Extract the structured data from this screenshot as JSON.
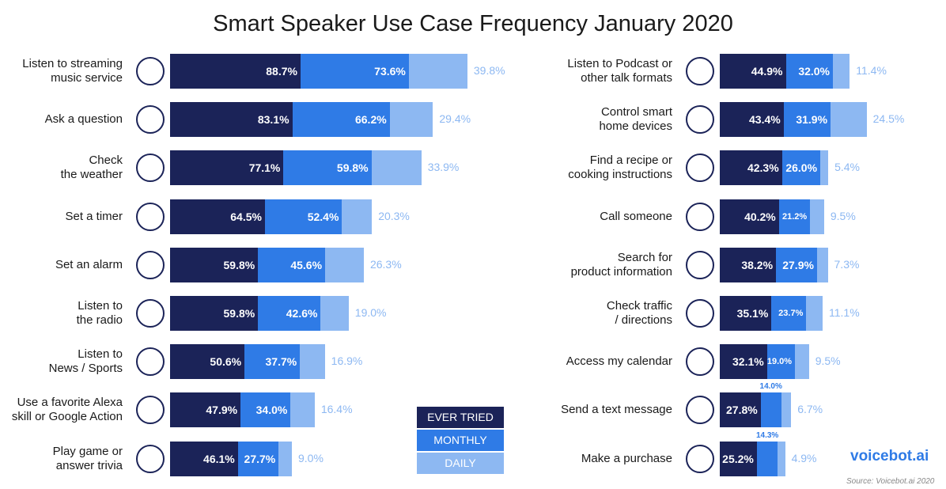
{
  "chart_data": {
    "type": "stacked_bar",
    "title": "Smart Speaker Use Case Frequency January 2020",
    "categories": [
      "Listen to streaming\nmusic service",
      "Ask a question",
      "Check\nthe weather",
      "Set a timer",
      "Set an alarm",
      "Listen to\nthe radio",
      "Listen to\nNews / Sports",
      "Use a favorite Alexa\nskill or Google Action",
      "Play game or\nanswer trivia",
      "Listen to Podcast or\nother talk formats",
      "Control smart\nhome devices",
      "Find a recipe or\ncooking instructions",
      "Call someone",
      "Search for\nproduct information",
      "Check traffic\n/ directions",
      "Access my calendar",
      "Send a text message",
      "Make a purchase"
    ],
    "series": [
      {
        "name": "EVER TRIED",
        "color": "#1b2358",
        "values": [
          88.7,
          83.1,
          77.1,
          64.5,
          59.8,
          59.8,
          50.6,
          47.9,
          46.1,
          44.9,
          43.4,
          42.3,
          40.2,
          38.2,
          35.1,
          32.1,
          27.8,
          25.2
        ],
        "value_labels": [
          "88.7%",
          "83.1%",
          "77.1%",
          "64.5%",
          "59.8%",
          "59.8%",
          "50.6%",
          "47.9%",
          "46.1%",
          "44.9%",
          "43.4%",
          "42.3%",
          "40.2%",
          "38.2%",
          "35.1%",
          "32.1%",
          "27.8%",
          "25.2%"
        ]
      },
      {
        "name": "MONTHLY",
        "color": "#2f7be6",
        "values": [
          73.6,
          66.2,
          59.8,
          52.4,
          45.6,
          42.6,
          37.7,
          34.0,
          27.7,
          32.0,
          31.9,
          26.0,
          21.2,
          27.9,
          23.7,
          19.0,
          14.0,
          14.3
        ],
        "value_labels": [
          "73.6%",
          "66.2%",
          "59.8%",
          "52.4%",
          "45.6%",
          "42.6%",
          "37.7%",
          "34.0%",
          "27.7%",
          "32.0%",
          "31.9%",
          "26.0%",
          "21.2%",
          "27.9%",
          "23.7%",
          "19.0%",
          "14.0%",
          "14.3%"
        ]
      },
      {
        "name": "DAILY",
        "color": "#8db8f2",
        "values": [
          39.8,
          29.4,
          33.9,
          20.3,
          26.3,
          19.0,
          16.9,
          16.4,
          9.0,
          11.4,
          24.5,
          5.4,
          9.5,
          7.3,
          11.1,
          9.5,
          6.7,
          4.9
        ],
        "value_labels": [
          "39.8%",
          "29.4%",
          "33.9%",
          "20.3%",
          "26.3%",
          "19.0%",
          "16.9%",
          "16.4%",
          "9.0%",
          "11.4%",
          "24.5%",
          "5.4%",
          "9.5%",
          "7.3%",
          "11.1%",
          "9.5%",
          "6.7%",
          "4.9%"
        ]
      }
    ]
  },
  "logo": "voicebot.ai",
  "source": "Source: Voicebot.ai 2020"
}
